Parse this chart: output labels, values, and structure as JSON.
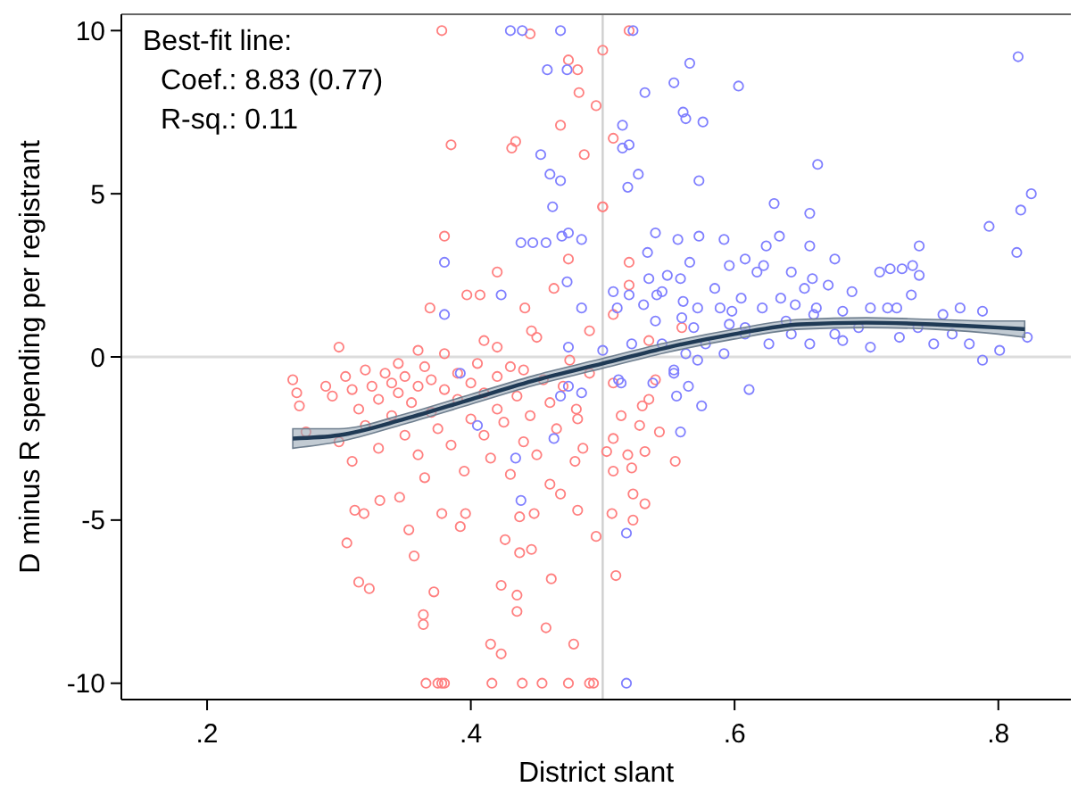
{
  "chart_data": {
    "type": "scatter",
    "xlabel": "District slant",
    "ylabel": "D minus R spending per registrant",
    "xlim": [
      0.135,
      0.855
    ],
    "ylim": [
      -10.5,
      10.5
    ],
    "xticks": [
      {
        "value": 0.2,
        "label": ".2"
      },
      {
        "value": 0.4,
        "label": ".4"
      },
      {
        "value": 0.6,
        "label": ".6"
      },
      {
        "value": 0.8,
        "label": ".8"
      }
    ],
    "yticks": [
      -10,
      -5,
      0,
      5,
      10
    ],
    "grid": false,
    "marker": "circle",
    "annotations": [
      "Best-fit line:",
      "Coef.: 8.83 (0.77)",
      "R-sq.: 0.11"
    ],
    "ref_lines": [
      {
        "axis": "x",
        "value": 0.5,
        "color": "#cfcfcf"
      },
      {
        "axis": "y",
        "value": 0,
        "color": "#dcdcdc"
      }
    ],
    "series": [
      {
        "color": "#ff7f7f",
        "x": [
          0.378,
          0.445,
          0.474,
          0.481,
          0.482,
          0.468,
          0.385,
          0.434,
          0.431,
          0.486,
          0.5,
          0.38,
          0.474,
          0.42,
          0.397,
          0.369,
          0.407,
          0.441,
          0.463,
          0.49,
          0.446,
          0.41,
          0.52,
          0.5,
          0.495,
          0.508,
          0.5,
          0.52,
          0.52,
          0.508,
          0.535,
          0.56,
          0.508,
          0.54,
          0.535,
          0.53,
          0.514,
          0.528,
          0.543,
          0.508,
          0.503,
          0.519,
          0.532,
          0.555,
          0.508,
          0.522,
          0.523,
          0.532,
          0.507,
          0.523,
          0.495,
          0.51,
          0.493,
          0.366,
          0.375,
          0.378,
          0.38,
          0.416,
          0.439,
          0.454,
          0.474,
          0.49,
          0.306,
          0.315,
          0.323,
          0.364,
          0.364,
          0.372,
          0.423,
          0.435,
          0.435,
          0.457,
          0.478,
          0.415,
          0.423,
          0.461,
          0.357,
          0.353,
          0.378,
          0.312,
          0.319,
          0.331,
          0.346,
          0.365,
          0.392,
          0.396,
          0.426,
          0.437,
          0.446,
          0.437,
          0.448,
          0.468,
          0.481,
          0.46,
          0.481,
          0.479,
          0.265,
          0.268,
          0.27,
          0.275,
          0.29,
          0.295,
          0.3,
          0.305,
          0.31,
          0.31,
          0.315,
          0.32,
          0.32,
          0.325,
          0.33,
          0.33,
          0.335,
          0.34,
          0.34,
          0.345,
          0.345,
          0.35,
          0.35,
          0.355,
          0.36,
          0.36,
          0.365,
          0.37,
          0.37,
          0.375,
          0.38,
          0.38,
          0.385,
          0.39,
          0.39,
          0.395,
          0.4,
          0.4,
          0.405,
          0.41,
          0.41,
          0.415,
          0.42,
          0.42,
          0.425,
          0.43,
          0.43,
          0.435,
          0.44,
          0.44,
          0.445,
          0.45,
          0.455,
          0.46,
          0.465,
          0.47,
          0.475,
          0.48,
          0.485,
          0.49,
          0.3,
          0.36,
          0.42,
          0.45
        ],
        "values": [
          10,
          9.9,
          9.1,
          8.8,
          8.1,
          7.1,
          6.5,
          6.6,
          6.4,
          6.2,
          4.6,
          3.7,
          3,
          2.6,
          1.9,
          1.5,
          1.9,
          1.5,
          2.1,
          0.8,
          0.8,
          0.5,
          10,
          9.4,
          7.7,
          6.7,
          4.6,
          2.9,
          2.2,
          1.3,
          0.5,
          0.9,
          -0.8,
          -0.7,
          -1.3,
          -1.5,
          -1.8,
          -2.1,
          -2.3,
          -2.5,
          -2.9,
          -3,
          -2.9,
          -3.2,
          -3.5,
          -3.4,
          -4.2,
          -4.5,
          -4.8,
          -5,
          -5.5,
          -6.7,
          -10,
          -10,
          -10,
          -10,
          -10,
          -10,
          -10,
          -10,
          -10,
          -10,
          -5.7,
          -6.9,
          -7.1,
          -7.9,
          -8.2,
          -7.2,
          -7,
          -7.3,
          -7.8,
          -8.3,
          -8.8,
          -8.8,
          -9.1,
          -6.8,
          -6.1,
          -5.3,
          -4.8,
          -4.7,
          -4.8,
          -4.4,
          -4.3,
          -3.7,
          -5.2,
          -4.8,
          -5.6,
          -6,
          -5.9,
          -4.9,
          -4.8,
          -4.2,
          -4.7,
          -3.9,
          -1.9,
          -3.2,
          -0.7,
          -1.1,
          -1.5,
          -2.3,
          -0.9,
          -1.2,
          -2.6,
          -0.6,
          -1,
          -3.2,
          -1.6,
          -0.4,
          -2.1,
          -0.9,
          -1.3,
          -2.8,
          -0.5,
          -0.8,
          -1.8,
          -1.1,
          -0.2,
          -2.4,
          -0.6,
          -1.4,
          -0.9,
          -3,
          -0.3,
          -1.7,
          -0.7,
          -2.2,
          -1,
          0.1,
          -2.7,
          -1.3,
          -0.5,
          -3.5,
          -0.8,
          -1.9,
          -0.2,
          -2.4,
          -1.1,
          -3.1,
          -0.6,
          -1.6,
          -2,
          -0.3,
          -3.6,
          -1.2,
          -2.6,
          -0.4,
          -1.8,
          -3,
          -0.7,
          -1.4,
          -2.2,
          -0.9,
          -0.1,
          -1.6,
          -2.8,
          -0.5,
          0.3,
          0.2,
          0.3,
          0.6
        ]
      },
      {
        "color": "#7f7fff",
        "x": [
          0.43,
          0.439,
          0.468,
          0.458,
          0.473,
          0.453,
          0.46,
          0.468,
          0.462,
          0.438,
          0.447,
          0.457,
          0.469,
          0.474,
          0.484,
          0.38,
          0.473,
          0.423,
          0.38,
          0.484,
          0.474,
          0.523,
          0.566,
          0.532,
          0.554,
          0.603,
          0.561,
          0.563,
          0.576,
          0.515,
          0.515,
          0.52,
          0.527,
          0.519,
          0.573,
          0.663,
          0.815,
          0.825,
          0.817,
          0.793,
          0.814,
          0.63,
          0.657,
          0.54,
          0.557,
          0.573,
          0.592,
          0.634,
          0.624,
          0.657,
          0.74,
          0.534,
          0.566,
          0.596,
          0.608,
          0.622,
          0.676,
          0.71,
          0.718,
          0.727,
          0.735,
          0.74,
          0.535,
          0.549,
          0.559,
          0.585,
          0.617,
          0.643,
          0.659,
          0.653,
          0.671,
          0.689,
          0.734,
          0.508,
          0.52,
          0.541,
          0.545,
          0.561,
          0.605,
          0.635,
          0.646,
          0.662,
          0.682,
          0.531,
          0.511,
          0.572,
          0.589,
          0.598,
          0.621,
          0.703,
          0.716,
          0.723,
          0.771,
          0.788,
          0.758,
          0.54,
          0.569,
          0.56,
          0.596,
          0.608,
          0.639,
          0.66,
          0.626,
          0.657,
          0.682,
          0.703,
          0.725,
          0.751,
          0.778,
          0.801,
          0.788,
          0.592,
          0.578,
          0.608,
          0.643,
          0.676,
          0.694,
          0.739,
          0.765,
          0.822,
          0.545,
          0.522,
          0.5,
          0.563,
          0.554,
          0.512,
          0.514,
          0.538,
          0.554,
          0.565,
          0.556,
          0.575,
          0.559,
          0.611,
          0.518,
          0.518,
          0.572,
          0.392,
          0.405,
          0.434,
          0.438,
          0.463,
          0.468,
          0.484,
          0.474
        ],
        "values": [
          10,
          10,
          10,
          8.8,
          8.8,
          6.2,
          5.6,
          5.4,
          4.6,
          3.5,
          3.5,
          3.5,
          3.7,
          3.8,
          3.6,
          2.9,
          2.3,
          1.9,
          1.3,
          1.5,
          0.3,
          10,
          9,
          8.1,
          8.4,
          8.3,
          7.5,
          7.3,
          7.2,
          7.1,
          6.4,
          6.5,
          5.6,
          5.2,
          5.4,
          5.9,
          9.2,
          5,
          4.5,
          4,
          3.2,
          4.7,
          4.4,
          3.8,
          3.6,
          3.7,
          3.6,
          3.7,
          3.4,
          3.4,
          3.4,
          3.2,
          2.9,
          2.8,
          3,
          2.8,
          3,
          2.6,
          2.7,
          2.7,
          2.8,
          2.5,
          2.4,
          2.5,
          2.4,
          2.1,
          2.6,
          2.6,
          2.4,
          2.1,
          2.2,
          2,
          1.9,
          2,
          1.9,
          1.9,
          2,
          1.7,
          1.8,
          1.8,
          1.6,
          1.5,
          1.4,
          1.6,
          1.5,
          1.5,
          1.5,
          1.4,
          1.5,
          1.5,
          1.5,
          1.5,
          1.5,
          1.4,
          1.3,
          1.1,
          0.9,
          1.2,
          1,
          0.9,
          1.1,
          1.3,
          0.4,
          0.4,
          0.5,
          0.3,
          0.6,
          0.4,
          0.4,
          0.2,
          -0.1,
          0.1,
          0.4,
          0.7,
          0.7,
          0.7,
          0.9,
          0.9,
          0.7,
          0.6,
          0.4,
          0.4,
          0.2,
          0.1,
          -0.4,
          -0.7,
          -0.8,
          -0.8,
          -0.5,
          -0.9,
          -1.2,
          -1.5,
          -2.3,
          -1,
          -5.4,
          -10,
          -0.1,
          -0.5,
          -2.1,
          -3.1,
          -4.4,
          -2.5,
          -1.2,
          -1.1,
          -0.9
        ]
      },
      {
        "type": "line",
        "marker": "none",
        "color": "#1f3a55",
        "x": [
          0.265,
          0.3,
          0.35,
          0.4,
          0.45,
          0.5,
          0.55,
          0.6,
          0.65,
          0.7,
          0.75,
          0.8,
          0.82
        ],
        "values": [
          -2.5,
          -2.4,
          -1.9,
          -1.3,
          -0.7,
          -0.2,
          0.3,
          0.7,
          1,
          1.05,
          1,
          0.9,
          0.85
        ],
        "lower": [
          -2.8,
          -2.6,
          -2.05,
          -1.45,
          -0.85,
          -0.35,
          0.15,
          0.55,
          0.85,
          0.9,
          0.85,
          0.7,
          0.6
        ],
        "upper": [
          -2.2,
          -2.2,
          -1.75,
          -1.15,
          -0.55,
          -0.05,
          0.45,
          0.85,
          1.15,
          1.2,
          1.15,
          1.1,
          1.1
        ]
      }
    ]
  }
}
